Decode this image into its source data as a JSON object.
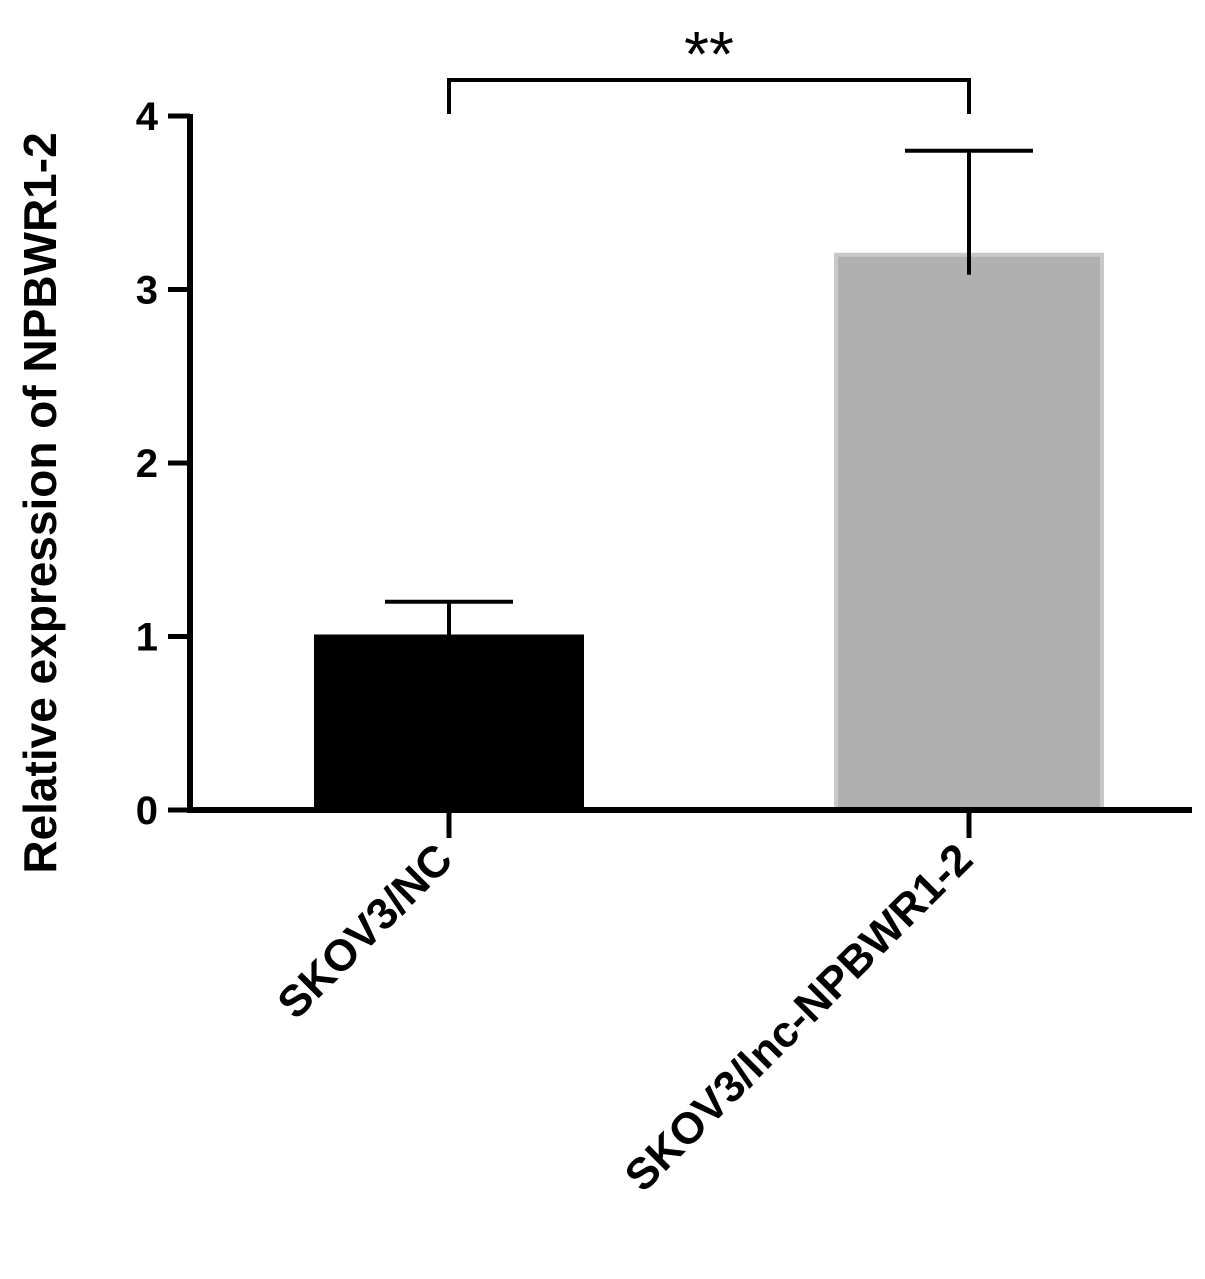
{
  "chart_data": {
    "type": "bar",
    "categories": [
      "SKOV3/NC",
      "SKOV3/lnc-NPBWR1-2"
    ],
    "values": [
      1.0,
      3.2
    ],
    "errors": [
      0.2,
      0.6
    ],
    "title": "",
    "xlabel": "",
    "ylabel": "Relative expression of NPBWR1-2",
    "ylim": [
      0,
      4
    ],
    "yticks": [
      "0",
      "1",
      "2",
      "3",
      "4"
    ],
    "bar_colors": [
      "#000000",
      "#b0b0b0"
    ],
    "bar_border_colors": [
      "#000000",
      "#c8c8c8"
    ],
    "significance": {
      "label": "**",
      "between": [
        0,
        1
      ]
    },
    "grid": false,
    "legend": "none"
  }
}
